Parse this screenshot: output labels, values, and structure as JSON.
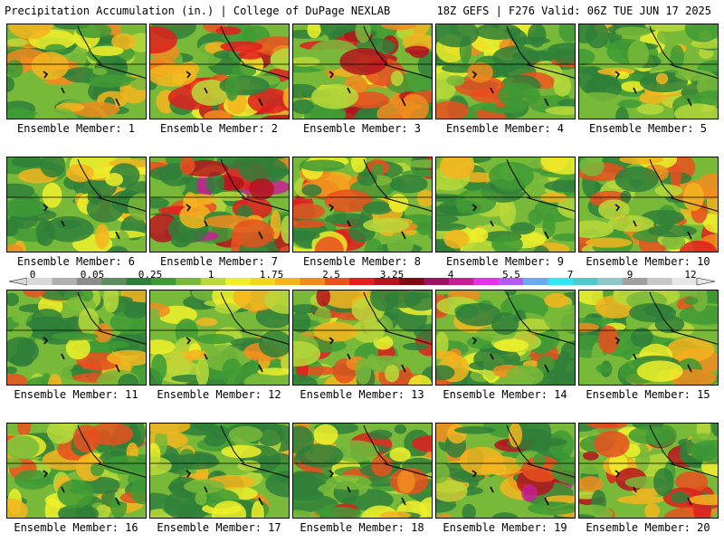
{
  "header": {
    "left": "Precipitation Accumulation (in.) | College of DuPage NEXLAB",
    "right": "18Z GEFS | F276 Valid: 06Z TUE JUN 17 2025"
  },
  "members": [
    {
      "label": "Ensemble Member: 1",
      "intensity": 0.35
    },
    {
      "label": "Ensemble Member: 2",
      "intensity": 0.75
    },
    {
      "label": "Ensemble Member: 3",
      "intensity": 0.7
    },
    {
      "label": "Ensemble Member: 4",
      "intensity": 0.55
    },
    {
      "label": "Ensemble Member: 5",
      "intensity": 0.3
    },
    {
      "label": "Ensemble Member: 6",
      "intensity": 0.4
    },
    {
      "label": "Ensemble Member: 7",
      "intensity": 0.8
    },
    {
      "label": "Ensemble Member: 8",
      "intensity": 0.6
    },
    {
      "label": "Ensemble Member: 9",
      "intensity": 0.3
    },
    {
      "label": "Ensemble Member: 10",
      "intensity": 0.6
    },
    {
      "label": "Ensemble Member: 11",
      "intensity": 0.55
    },
    {
      "label": "Ensemble Member: 12",
      "intensity": 0.4
    },
    {
      "label": "Ensemble Member: 13",
      "intensity": 0.7
    },
    {
      "label": "Ensemble Member: 14",
      "intensity": 0.55
    },
    {
      "label": "Ensemble Member: 15",
      "intensity": 0.5
    },
    {
      "label": "Ensemble Member: 16",
      "intensity": 0.55
    },
    {
      "label": "Ensemble Member: 17",
      "intensity": 0.4
    },
    {
      "label": "Ensemble Member: 18",
      "intensity": 0.6
    },
    {
      "label": "Ensemble Member: 19",
      "intensity": 0.8
    },
    {
      "label": "Ensemble Member: 20",
      "intensity": 0.7
    }
  ],
  "colorbar": {
    "tick_labels": [
      "0",
      "0.05",
      "0.25",
      "1",
      "1.75",
      "2.5",
      "3.25",
      "4",
      "5.5",
      "7",
      "9",
      "12"
    ],
    "colors": [
      "#d9d9d9",
      "#b0b0b0",
      "#8c8c8c",
      "#5e8c5e",
      "#2f7f3a",
      "#3f9a35",
      "#78b93a",
      "#b9d83a",
      "#f0f02a",
      "#f0d81e",
      "#f5b41e",
      "#f08c1e",
      "#e8501e",
      "#e01e1e",
      "#b4141e",
      "#820a14",
      "#9a1464",
      "#c81e96",
      "#e632e6",
      "#b45af0",
      "#6eaaf0",
      "#32e6f0",
      "#50c8c8",
      "#8cc8c8",
      "#a0a0a0",
      "#c8c8c8",
      "#e6e6e6"
    ]
  }
}
